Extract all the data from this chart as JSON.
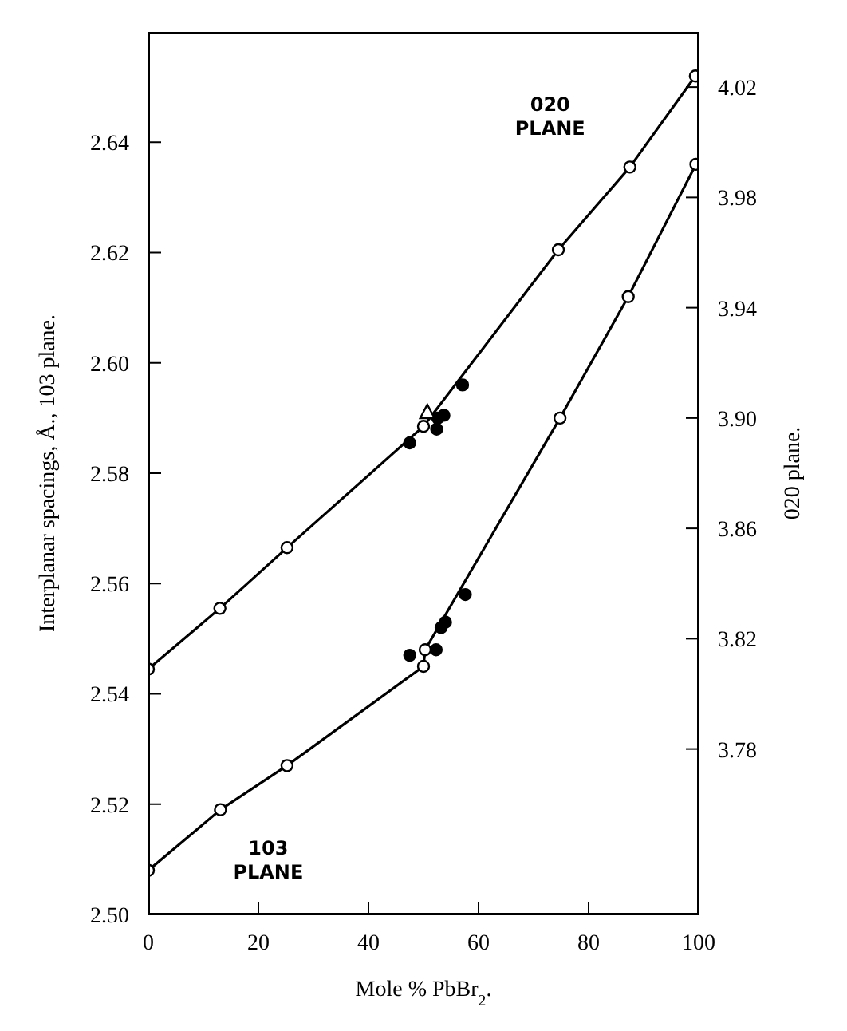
{
  "chart_data": {
    "type": "line",
    "xlabel": "Mole % PbBr$_{2}$.",
    "ylabel": "Interplanar spacings, Å., 103 plane.",
    "y2label": "020 plane.",
    "xlim": [
      0,
      100
    ],
    "xticks": [
      0,
      20,
      40,
      60,
      80,
      100
    ],
    "ylim": [
      2.5,
      2.66
    ],
    "yticks": [
      {
        "value": 2.5,
        "label": "2.50"
      },
      2.52,
      2.54,
      2.56,
      2.58,
      {
        "value": 2.6,
        "label": "2.60"
      },
      2.62,
      2.64
    ],
    "y2lim": [
      3.72,
      4.04
    ],
    "y2ticks": [
      3.78,
      3.82,
      3.86,
      {
        "value": 3.9,
        "label": "3.90"
      },
      3.94,
      3.98,
      4.02
    ],
    "grid": false,
    "legend": false,
    "marker": "circle",
    "line_style": "solid",
    "series": [
      {
        "name": "020 PLANE",
        "axis": "y2",
        "color": "#000000",
        "x": [
          0,
          13,
          25.2,
          50,
          74.5,
          87.5,
          99.4
        ],
        "values": [
          3.809,
          3.831,
          3.853,
          3.897,
          3.961,
          3.991,
          4.024
        ]
      },
      {
        "type": "scatter",
        "axis": "y2",
        "color": "#000000",
        "x": [
          47.5,
          52.4,
          52.6,
          53.7,
          57.1
        ],
        "values": [
          3.891,
          3.896,
          3.9,
          3.901,
          3.912
        ]
      },
      {
        "type": "scatter",
        "axis": "y2",
        "marker": "triangle",
        "color": "#000000",
        "x": [
          50.7
        ],
        "values": [
          3.902
        ]
      },
      {
        "name": "103 PLANE",
        "axis": "y",
        "color": "#000000",
        "x": [
          0,
          13.1,
          25.2,
          50,
          50.3,
          74.8,
          87.2,
          99.5
        ],
        "values": [
          2.508,
          2.519,
          2.527,
          2.545,
          2.548,
          2.59,
          2.612,
          2.636
        ]
      },
      {
        "type": "scatter",
        "axis": "y",
        "color": "#000000",
        "x": [
          47.5,
          52.3,
          53.2,
          54,
          57.6
        ],
        "values": [
          2.547,
          2.548,
          2.552,
          2.553,
          2.558
        ]
      }
    ]
  }
}
